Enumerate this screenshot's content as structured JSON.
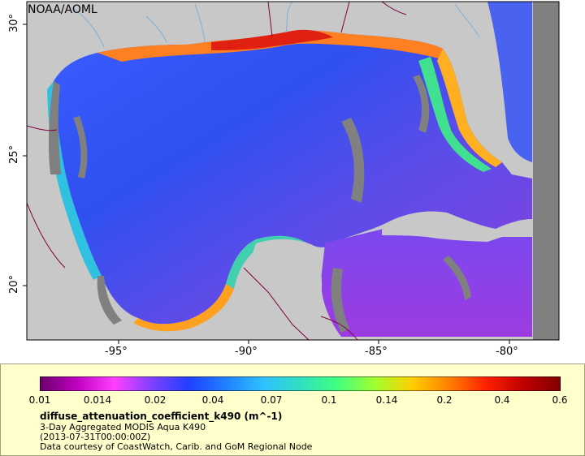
{
  "map": {
    "credit": "NOAA/AOML",
    "lat_labels": [
      "30°",
      "25°",
      "20°"
    ],
    "lon_labels": [
      "-95°",
      "-90°",
      "-85°",
      "-80°"
    ],
    "colors": {
      "land": "#c8c8c8",
      "no_data": "#808080",
      "border": "#800040",
      "river": "#7ab0dc",
      "frame": "#000000"
    }
  },
  "legend": {
    "colorbar_ticks": [
      "0.01",
      "0.014",
      "0.02",
      "0.04",
      "0.07",
      "0.1",
      "0.14",
      "0.2",
      "0.4",
      "0.6"
    ],
    "variable": "diffuse_attenuation_coefficient_k490 (m^-1)",
    "line2": "3-Day Aggregated MODIS Aqua K490",
    "line3": "(2013-07-31T00:00:00Z)",
    "line4": "Data courtesy of CoastWatch, Carib. and GoM Regional Node",
    "colormap": [
      "#6a006a",
      "#c000c0",
      "#ff40ff",
      "#8040ff",
      "#2040ff",
      "#2080ff",
      "#30c0ff",
      "#30e0c0",
      "#40ff80",
      "#a0ff30",
      "#ffd000",
      "#ff8000",
      "#ff2000",
      "#c00000",
      "#800000"
    ]
  }
}
